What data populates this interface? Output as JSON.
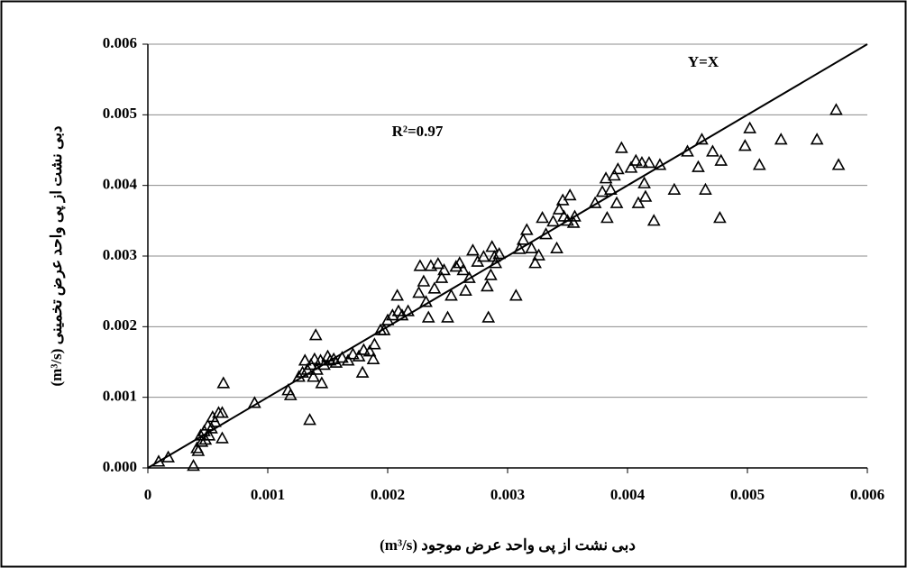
{
  "chart_data": {
    "type": "scatter",
    "x_label": "دبی نشت از پی واحد عرض موجود (m³/s)",
    "y_label": "دبی نشت از پی واحد عرض تخمینی (m³/s)",
    "annotations": [
      "Y=X",
      "R²=0.97"
    ],
    "color": "#000000",
    "grid": true,
    "xlim": [
      0,
      0.006
    ],
    "ylim": [
      0,
      0.006
    ],
    "xticks": [
      0,
      0.001,
      0.002,
      0.003,
      0.004,
      0.005,
      0.006
    ],
    "yticks": [
      {
        "value": 0,
        "label": "0.000"
      },
      0.001,
      0.002,
      0.003,
      0.004,
      0.005,
      0.006
    ],
    "line": {
      "x": [
        0,
        0.006
      ],
      "y": [
        0,
        0.006
      ]
    },
    "x": [
      9e-05,
      0.00017,
      0.00038,
      0.00041,
      0.00042,
      0.00044,
      0.00045,
      0.00047,
      0.00048,
      0.0005,
      0.00051,
      0.00053,
      0.00054,
      0.00056,
      0.00059,
      0.00062,
      0.00062,
      0.00063,
      0.00089,
      0.00117,
      0.00119,
      0.00126,
      0.00129,
      0.00131,
      0.00133,
      0.00135,
      0.00136,
      0.00138,
      0.00139,
      0.0014,
      0.00141,
      0.00144,
      0.00145,
      0.00147,
      0.0015,
      0.00152,
      0.00155,
      0.00157,
      0.00162,
      0.00167,
      0.00171,
      0.00176,
      0.00179,
      0.0018,
      0.00185,
      0.00188,
      0.00189,
      0.00194,
      0.00197,
      0.002,
      0.00204,
      0.00208,
      0.00209,
      0.00212,
      0.00217,
      0.00226,
      0.00227,
      0.0023,
      0.00232,
      0.00234,
      0.00236,
      0.00239,
      0.00242,
      0.00245,
      0.00247,
      0.0025,
      0.00253,
      0.00257,
      0.0026,
      0.00263,
      0.00265,
      0.00268,
      0.00271,
      0.00275,
      0.0028,
      0.00283,
      0.00284,
      0.00286,
      0.00287,
      0.00289,
      0.0029,
      0.00293,
      0.00307,
      0.0031,
      0.00313,
      0.00316,
      0.0032,
      0.00323,
      0.00326,
      0.00329,
      0.00332,
      0.00338,
      0.00341,
      0.00343,
      0.00346,
      0.00347,
      0.0035,
      0.00352,
      0.00355,
      0.00356,
      0.00373,
      0.00379,
      0.00382,
      0.00383,
      0.00386,
      0.00389,
      0.00391,
      0.00392,
      0.00395,
      0.00403,
      0.00407,
      0.00409,
      0.00412,
      0.00414,
      0.00415,
      0.00418,
      0.00422,
      0.00427,
      0.00439,
      0.0045,
      0.00459,
      0.00462,
      0.00465,
      0.00471,
      0.00477,
      0.00478,
      0.00498,
      0.00502,
      0.0051,
      0.00528,
      0.00558,
      0.00574,
      0.00576
    ],
    "values": [
      9e-05,
      0.00015,
      3e-05,
      0.00028,
      0.00024,
      0.00046,
      0.00037,
      0.00052,
      0.0004,
      0.0006,
      0.00046,
      0.00056,
      0.00072,
      0.00065,
      0.00078,
      0.00078,
      0.00042,
      0.0012,
      0.00092,
      0.0011,
      0.00103,
      0.00129,
      0.00135,
      0.00152,
      0.00139,
      0.00068,
      0.00146,
      0.00129,
      0.00154,
      0.00188,
      0.00139,
      0.00152,
      0.0012,
      0.00146,
      0.00158,
      0.00152,
      0.00154,
      0.00149,
      0.00156,
      0.00152,
      0.00161,
      0.00158,
      0.00135,
      0.00167,
      0.00165,
      0.00154,
      0.00175,
      0.00195,
      0.00195,
      0.00209,
      0.00216,
      0.00244,
      0.00222,
      0.00216,
      0.00222,
      0.00248,
      0.00286,
      0.00264,
      0.00235,
      0.00213,
      0.00286,
      0.00254,
      0.00289,
      0.00269,
      0.0028,
      0.00213,
      0.00244,
      0.00285,
      0.0029,
      0.0028,
      0.00251,
      0.00269,
      0.00308,
      0.00292,
      0.00299,
      0.00257,
      0.00213,
      0.00273,
      0.00313,
      0.00299,
      0.0029,
      0.00303,
      0.00244,
      0.0031,
      0.00323,
      0.00337,
      0.00311,
      0.0029,
      0.00301,
      0.00354,
      0.00331,
      0.00349,
      0.00311,
      0.00366,
      0.00379,
      0.00356,
      0.0035,
      0.00386,
      0.00347,
      0.00356,
      0.00375,
      0.00391,
      0.0041,
      0.00354,
      0.00394,
      0.00414,
      0.00375,
      0.00423,
      0.00453,
      0.00425,
      0.00435,
      0.00375,
      0.00432,
      0.00403,
      0.00384,
      0.00432,
      0.0035,
      0.00429,
      0.00394,
      0.00448,
      0.00426,
      0.00465,
      0.00394,
      0.00448,
      0.00354,
      0.00435,
      0.00456,
      0.00481,
      0.00429,
      0.00465,
      0.00465,
      0.00507,
      0.00429
    ]
  }
}
